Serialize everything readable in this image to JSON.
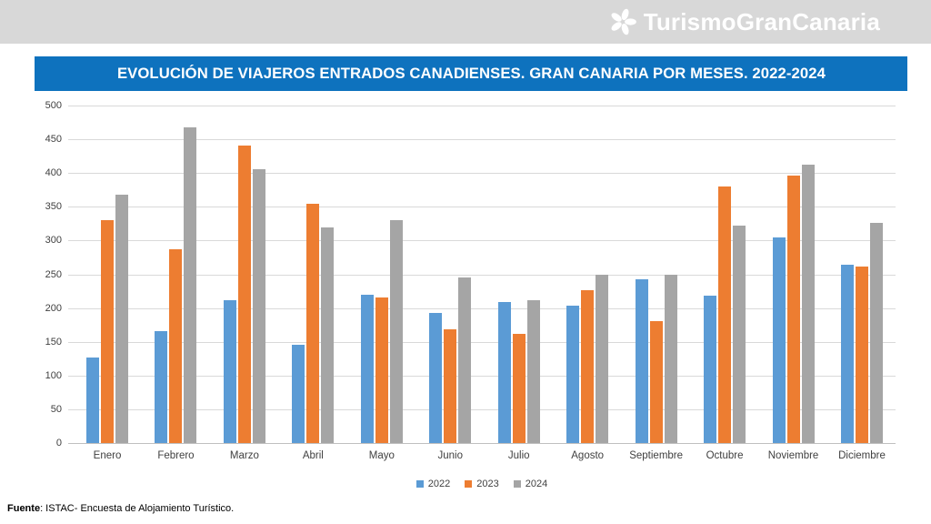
{
  "header": {
    "logo_text": "TurismoGranCanaria"
  },
  "title_bar": {
    "title": "EVOLUCIÓN DE VIAJEROS ENTRADOS CANADIENSES. GRAN CANARIA POR MESES. 2022-2024",
    "background": "#0E72BE"
  },
  "chart_data": {
    "type": "bar",
    "title": "EVOLUCIÓN DE VIAJEROS ENTRADOS CANADIENSES. GRAN CANARIA POR MESES. 2022-2024",
    "categories": [
      "Enero",
      "Febrero",
      "Marzo",
      "Abril",
      "Mayo",
      "Junio",
      "Julio",
      "Agosto",
      "Septiembre",
      "Octubre",
      "Noviembre",
      "Diciembre"
    ],
    "series": [
      {
        "name": "2022",
        "color": "#5B9BD5",
        "values": [
          127,
          166,
          212,
          146,
          220,
          193,
          209,
          203,
          243,
          218,
          304,
          264
        ]
      },
      {
        "name": "2023",
        "color": "#ED7D31",
        "values": [
          330,
          287,
          441,
          354,
          216,
          168,
          162,
          227,
          180,
          380,
          396,
          262
        ]
      },
      {
        "name": "2024",
        "color": "#A5A5A5",
        "values": [
          368,
          467,
          406,
          319,
          330,
          245,
          212,
          249,
          249,
          322,
          413,
          326
        ]
      }
    ],
    "xlabel": "",
    "ylabel": "",
    "ylim": [
      0,
      500
    ],
    "ytick_step": 50,
    "grid": true,
    "legend_position": "bottom"
  },
  "footer": {
    "label": "Fuente",
    "rest": ": ISTAC- Encuesta de Alojamiento Turístico."
  }
}
